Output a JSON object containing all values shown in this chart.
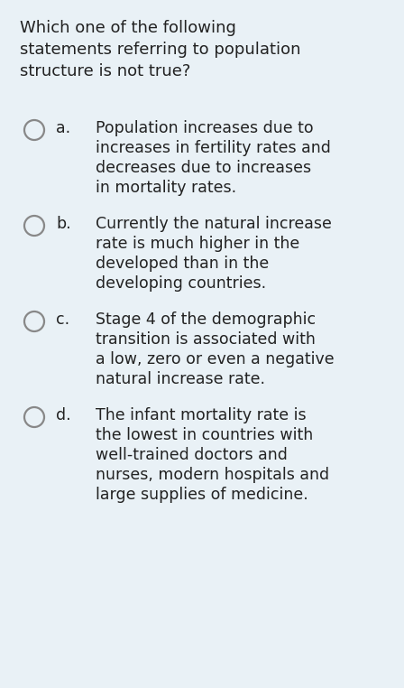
{
  "background_color": "#e9f1f6",
  "text_color": "#222222",
  "title_lines": [
    "Which one of the following",
    "statements referring to population",
    "structure is not true?"
  ],
  "title_fontsize": 13.0,
  "options": [
    {
      "label": "a.",
      "lines": [
        "Population increases due to",
        "increases in fertility rates and",
        "decreases due to increases",
        "in mortality rates."
      ]
    },
    {
      "label": "b.",
      "lines": [
        "Currently the natural increase",
        "rate is much higher in the",
        "developed than in the",
        "developing countries."
      ]
    },
    {
      "label": "c.",
      "lines": [
        "Stage 4 of the demographic",
        "transition is associated with",
        "a low, zero or even a negative",
        "natural increase rate."
      ]
    },
    {
      "label": "d.",
      "lines": [
        "The infant mortality rate is",
        "the lowest in countries with",
        "well-trained doctors and",
        "nurses, modern hospitals and",
        "large supplies of medicine."
      ]
    }
  ],
  "option_fontsize": 12.5,
  "label_fontsize": 12.5,
  "figsize": [
    4.48,
    7.62
  ],
  "dpi": 100
}
